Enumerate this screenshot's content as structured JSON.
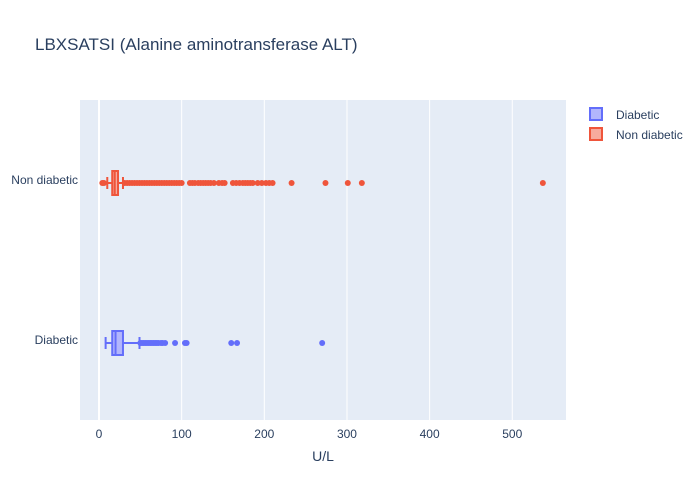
{
  "chart_data": {
    "type": "box",
    "orientation": "horizontal",
    "title": "LBXSATSI (Alanine aminotransferase ALT)",
    "xlabel": "U/L",
    "ylabel": "",
    "xlim": [
      -23,
      565
    ],
    "x_ticks": [
      0,
      100,
      200,
      300,
      400,
      500
    ],
    "categories": [
      "Diabetic",
      "Non diabetic"
    ],
    "grid": true,
    "legend_position": "top-right",
    "series": [
      {
        "name": "Diabetic",
        "color": "#636efa",
        "fill": "#b2b6fc",
        "category": "Diabetic",
        "min": 8,
        "q1": 16,
        "median": 20,
        "q3": 29,
        "max": 49,
        "outliers": [
          50,
          52,
          54,
          56,
          58,
          60,
          62,
          64,
          66,
          68,
          70,
          72,
          75,
          77,
          80,
          92,
          104,
          106,
          160,
          167,
          270
        ]
      },
      {
        "name": "Non diabetic",
        "color": "#ef553b",
        "fill": "#f7aa9d",
        "category": "Non diabetic",
        "min": 10,
        "q1": 16,
        "median": 19,
        "q3": 23,
        "max": 29,
        "outliers": [
          4,
          6,
          31,
          34,
          37,
          40,
          43,
          46,
          49,
          52,
          55,
          58,
          61,
          64,
          67,
          70,
          73,
          76,
          79,
          82,
          85,
          88,
          91,
          94,
          97,
          100,
          110,
          113,
          116,
          120,
          123,
          126,
          129,
          132,
          135,
          139,
          145,
          149,
          152,
          162,
          166,
          170,
          174,
          177,
          180,
          183,
          186,
          192,
          197,
          202,
          206,
          210,
          233,
          274,
          301,
          318,
          537
        ]
      }
    ]
  }
}
